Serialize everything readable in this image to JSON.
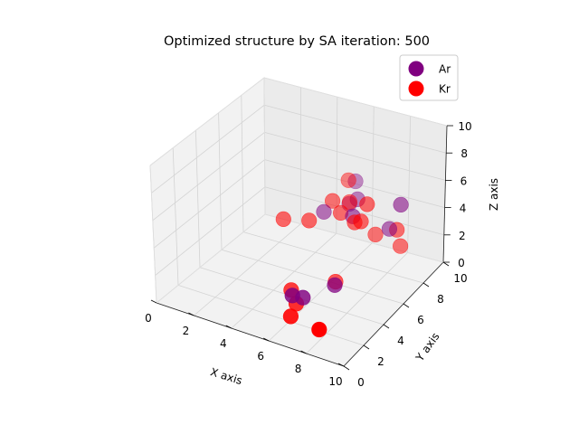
{
  "chart_data": {
    "type": "scatter",
    "projection": "3d",
    "title": "Optimized structure by SA iteration: 500",
    "xlabel": "X axis",
    "ylabel": "Y axis",
    "zlabel": "Z axis",
    "xlim": [
      0,
      10
    ],
    "ylim": [
      0,
      10
    ],
    "zlim": [
      0,
      10
    ],
    "x_ticks": [
      "0",
      "2",
      "4",
      "6",
      "8",
      "10"
    ],
    "y_ticks": [
      "0",
      "2",
      "4",
      "6",
      "8",
      "10"
    ],
    "z_ticks": [
      "0",
      "2",
      "4",
      "6",
      "8",
      "10"
    ],
    "grid": true,
    "legend": "top-right",
    "series": [
      {
        "name": "Ar",
        "color": "#800080",
        "points": [
          [
            5.5,
            6.2,
            4.8
          ],
          [
            5.6,
            3.0,
            1.0
          ],
          [
            6.0,
            3.3,
            0.8
          ],
          [
            7.0,
            4.6,
            1.2
          ],
          [
            6.3,
            7.8,
            6.2
          ],
          [
            6.7,
            7.3,
            5.4
          ],
          [
            6.2,
            7.4,
            4.8
          ],
          [
            8.4,
            7.4,
            3.8
          ],
          [
            9.0,
            7.4,
            5.8
          ],
          [
            6.9,
            6.5,
            4.8
          ]
        ]
      },
      {
        "name": "Kr",
        "color": "#ff0000",
        "points": [
          [
            6.2,
            7.3,
            6.6
          ],
          [
            5.8,
            6.5,
            5.5
          ],
          [
            6.5,
            6.9,
            5.4
          ],
          [
            6.3,
            6.4,
            4.9
          ],
          [
            4.0,
            5.0,
            4.5
          ],
          [
            5.1,
            5.5,
            4.5
          ],
          [
            7.5,
            6.8,
            5.7
          ],
          [
            7.4,
            6.4,
            4.7
          ],
          [
            7.0,
            6.5,
            4.4
          ],
          [
            7.7,
            7.3,
            3.2
          ],
          [
            8.7,
            7.6,
            3.7
          ],
          [
            8.8,
            7.8,
            2.4
          ],
          [
            6.6,
            5.4,
            0.7
          ],
          [
            5.2,
            3.6,
            0.8
          ],
          [
            5.7,
            3.2,
            0.3
          ],
          [
            5.9,
            2.3,
            0.1
          ],
          [
            7.6,
            2.0,
            0.1
          ]
        ]
      }
    ]
  }
}
